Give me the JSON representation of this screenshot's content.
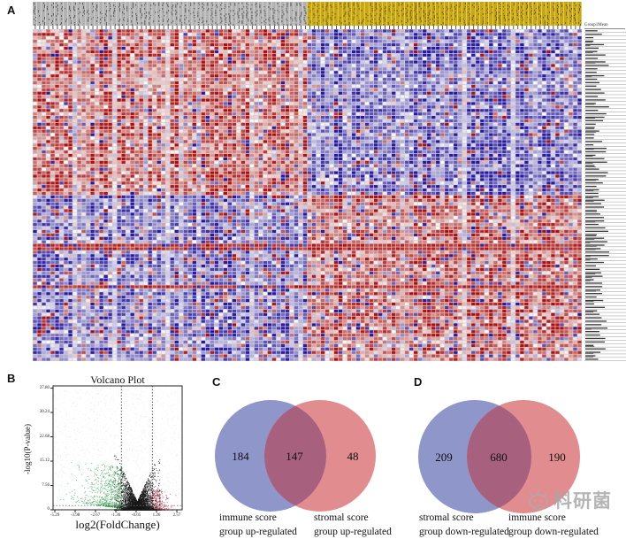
{
  "figure": {
    "panel_labels": {
      "a": "A",
      "b": "B",
      "c": "C",
      "d": "D"
    }
  },
  "heatmap": {
    "corner_label": "Group1Mean",
    "columns": 124,
    "rows": 96,
    "split_col": 62,
    "split_row": 48,
    "row_label_count": 96,
    "row_labels_note": "gene symbol labels (illegible at source resolution)",
    "group_left_color": "#b2b2b2",
    "group_left_text_color": "#5a5a5a",
    "group_right_color": "#c9a80e",
    "group_right_text_color": "#6f5c00",
    "up_color": "#b50d0d",
    "down_color": "#2718a8",
    "grid_color": "#cfcfcf"
  },
  "chart_data": [
    {
      "type": "heatmap",
      "title": "",
      "description": "Differentially expressed gene heatmap: left sample group (gray annotation) shows up-regulated top gene block (red) and down-regulated bottom block (blue); right sample group (gold annotation) shows the inverse pattern.",
      "column_groups": [
        "left group (gray)",
        "right group (gold)"
      ],
      "legend": "Group1Mean",
      "high_color_meaning": "up-regulated (red)",
      "low_color_meaning": "down-regulated (blue)"
    },
    {
      "type": "scatter",
      "title": "Volcano Plot",
      "xlabel": "log2(FoldChange)",
      "ylabel": "-log10(P-value)",
      "x_tick_labels": [
        "-5.29",
        "-3.98",
        "-2.67",
        "-1.36",
        "-0.05",
        "1.26",
        "2.57"
      ],
      "y_tick_labels": [
        "0",
        "7.56",
        "15.12",
        "22.68",
        "30.24",
        "37.80"
      ],
      "x_ticks": [
        -5.29,
        -3.98,
        -2.67,
        -1.36,
        -0.05,
        1.26,
        2.57
      ],
      "y_ticks": [
        0,
        7.56,
        15.12,
        22.68,
        30.24,
        37.8
      ],
      "xlim": [
        -5.9,
        2.9
      ],
      "ylim": [
        0,
        38.5
      ],
      "thresholds": {
        "log2fc": [
          -1,
          1
        ],
        "pvalue_line": 1.3
      },
      "series": [
        {
          "name": "down-regulated",
          "color": "#3aa055"
        },
        {
          "name": "not significant",
          "color": "#1a1a1a"
        },
        {
          "name": "up-regulated",
          "color": "#c03a55"
        },
        {
          "name": "background",
          "color": "#999999"
        }
      ],
      "grid": false,
      "legend_position": "none"
    },
    {
      "type": "venn",
      "left_only": 184,
      "overlap": 147,
      "right_only": 48,
      "left_label_lines": [
        "immune score",
        "group up-regulated"
      ],
      "right_label_lines": [
        "stromal score",
        "group up-regulated"
      ],
      "left_color": "#8e96ca",
      "right_color": "#e18d90",
      "overlap_color": "#a8607f"
    },
    {
      "type": "venn",
      "left_only": 209,
      "overlap": 680,
      "right_only": 190,
      "left_label_lines": [
        "stromal score",
        "group down-regulated"
      ],
      "right_label_lines": [
        "immune score",
        "group down-regulated"
      ],
      "left_color": "#8e96ca",
      "right_color": "#e18d90",
      "overlap_color": "#a8607f"
    }
  ],
  "watermark": {
    "text": "科研菌",
    "color": "#a8a8a8"
  }
}
